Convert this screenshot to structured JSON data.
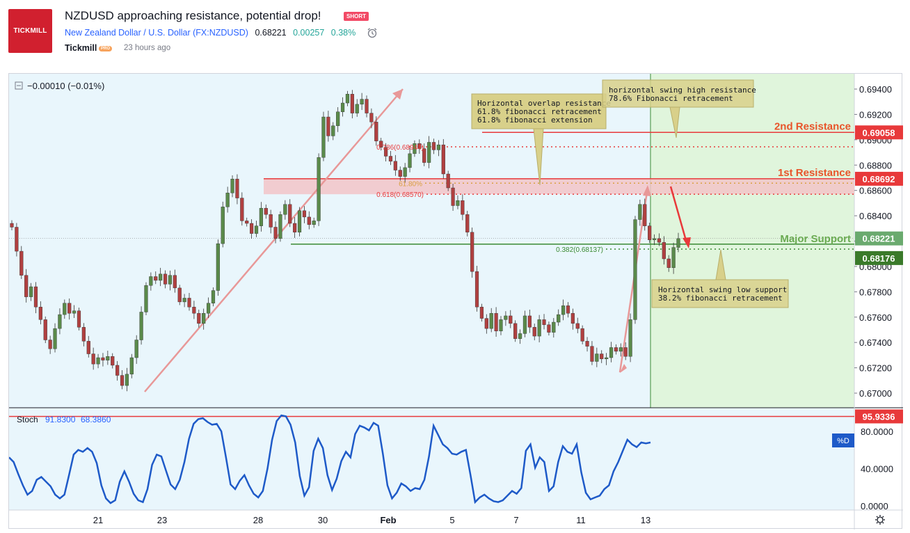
{
  "header": {
    "logo_text": "TICKMILL",
    "title": "NZDUSD approaching resistance, potential drop!",
    "badge": "SHORT",
    "symbol_name": "New Zealand Dollar / U.S. Dollar (FX:NZDUSD)",
    "price": "0.68221",
    "change": "0.00257",
    "change_pct": "0.38%",
    "author": "Tickmill",
    "author_badge": "PRO",
    "time_ago": "23 hours ago"
  },
  "colors": {
    "background_left": "#e9f6fc",
    "background_right": "#e0f5dc",
    "resistance": "#e8393a",
    "support": "#3a8a32",
    "candle_up": "#5a8a4a",
    "candle_down": "#b04040",
    "stoch_line": "#1e5ac8",
    "arrow": "#e89898",
    "annotation_bg": "#d8d08a"
  },
  "chart_data": {
    "type": "candlestick",
    "symbol": "FX:NZDUSD",
    "price_axis_ticks": [
      "0.69400",
      "0.69200",
      "0.69000",
      "0.68800",
      "0.68600",
      "0.68400",
      "0.68200",
      "0.68000",
      "0.67800",
      "0.67600",
      "0.67400",
      "0.67200",
      "0.67000"
    ],
    "price_axis_values": [
      0.694,
      0.692,
      0.69,
      0.688,
      0.686,
      0.684,
      0.682,
      0.68,
      0.678,
      0.676,
      0.674,
      0.672,
      0.67
    ],
    "ylim": [
      0.669,
      0.6955
    ],
    "x_tick_labels": [
      "21",
      "23",
      "28",
      "30",
      "Feb",
      "5",
      "7",
      "11",
      "13"
    ],
    "change_readout": "−0.00010 (−0.01%)",
    "price_tags": [
      {
        "label": "0.69058",
        "value": 0.69058,
        "kind": "resistance"
      },
      {
        "label": "0.68692",
        "value": 0.68692,
        "kind": "resistance"
      },
      {
        "label": "0.68221",
        "value": 0.68221,
        "kind": "current"
      },
      {
        "label": "0.68176",
        "value": 0.68176,
        "kind": "support"
      }
    ],
    "levels": [
      {
        "label": "2nd Resistance",
        "value": 0.69058
      },
      {
        "label": "1st Resistance",
        "value": 0.68692
      },
      {
        "label": "Major Support",
        "value": 0.68176
      }
    ],
    "fib_labels": [
      {
        "label": "0.786(0.68944)",
        "value": 0.68944
      },
      {
        "label": "61.80%",
        "value": 0.68657
      },
      {
        "label": "0.618(0.68570)",
        "value": 0.6857
      },
      {
        "label": "0.382(0.68137)",
        "value": 0.68137
      }
    ],
    "annotations": [
      {
        "lines": [
          "Horizontal overlap resistance",
          "61.8% fibonacci retracement",
          "61.8% fibonacci extension"
        ]
      },
      {
        "lines": [
          "horizontal swing high resistance",
          "78.6% Fibonacci retracement"
        ]
      },
      {
        "lines": [
          "Horizontal swing low support",
          "38.2% fibonacci retracement"
        ]
      }
    ],
    "price_path": [
      0.6831,
      0.6812,
      0.6793,
      0.6776,
      0.6784,
      0.6768,
      0.6758,
      0.6742,
      0.6735,
      0.6751,
      0.6762,
      0.6771,
      0.6763,
      0.6765,
      0.6752,
      0.6741,
      0.6731,
      0.6723,
      0.6728,
      0.6726,
      0.6729,
      0.6722,
      0.6714,
      0.6706,
      0.6715,
      0.6728,
      0.6742,
      0.6764,
      0.6785,
      0.6792,
      0.6789,
      0.6794,
      0.6786,
      0.6793,
      0.6783,
      0.6772,
      0.6775,
      0.6768,
      0.6763,
      0.6755,
      0.6763,
      0.6771,
      0.6781,
      0.6818,
      0.6847,
      0.6858,
      0.6869,
      0.6854,
      0.6836,
      0.6834,
      0.6826,
      0.6832,
      0.6846,
      0.6841,
      0.6831,
      0.6822,
      0.6841,
      0.6849,
      0.6834,
      0.6827,
      0.6844,
      0.6839,
      0.6833,
      0.6836,
      0.6886,
      0.6918,
      0.6903,
      0.6911,
      0.6922,
      0.6929,
      0.6936,
      0.6921,
      0.6928,
      0.6932,
      0.6921,
      0.6914,
      0.6899,
      0.6894,
      0.6887,
      0.6883,
      0.6876,
      0.6871,
      0.6878,
      0.6889,
      0.6897,
      0.6893,
      0.6882,
      0.6898,
      0.6892,
      0.6896,
      0.6873,
      0.6862,
      0.6848,
      0.6852,
      0.6841,
      0.6827,
      0.6796,
      0.6768,
      0.6759,
      0.6751,
      0.6763,
      0.6749,
      0.6758,
      0.6761,
      0.6755,
      0.6743,
      0.6747,
      0.6761,
      0.6752,
      0.6745,
      0.6758,
      0.6754,
      0.6748,
      0.6756,
      0.6762,
      0.6769,
      0.6763,
      0.6755,
      0.6751,
      0.6741,
      0.6737,
      0.6725,
      0.6731,
      0.6727,
      0.6728,
      0.6736,
      0.6733,
      0.6736,
      0.6729,
      0.6758,
      0.6837,
      0.6849,
      0.6832,
      0.6821,
      0.6822,
      0.6819,
      0.6806,
      0.6799,
      0.6815,
      0.6822
    ],
    "stoch": {
      "label": "Stoch",
      "k": "91.8300",
      "d": "68.3860",
      "d_tag": "%D",
      "overbought_tag": "95.9336",
      "axis_ticks": [
        "80.0000",
        "40.0000",
        "0.0000"
      ],
      "values": [
        52,
        47,
        34,
        22,
        12,
        16,
        28,
        31,
        26,
        21,
        12,
        8,
        12,
        33,
        55,
        60,
        58,
        62,
        58,
        46,
        22,
        8,
        3,
        6,
        26,
        37,
        26,
        13,
        6,
        4,
        18,
        44,
        55,
        53,
        38,
        23,
        18,
        28,
        47,
        72,
        88,
        93,
        94,
        90,
        87,
        88,
        80,
        52,
        23,
        18,
        27,
        33,
        22,
        13,
        9,
        16,
        40,
        71,
        91,
        97,
        96,
        87,
        68,
        32,
        11,
        20,
        59,
        72,
        62,
        33,
        17,
        29,
        48,
        58,
        52,
        77,
        86,
        84,
        81,
        89,
        86,
        56,
        22,
        8,
        14,
        24,
        21,
        16,
        19,
        18,
        28,
        53,
        86,
        76,
        66,
        62,
        56,
        55,
        58,
        60,
        33,
        4,
        9,
        12,
        8,
        5,
        4,
        6,
        11,
        16,
        13,
        19,
        59,
        66,
        41,
        52,
        47,
        16,
        21,
        47,
        64,
        58,
        56,
        66,
        36,
        14,
        7,
        9,
        11,
        18,
        22,
        37,
        47,
        59,
        71,
        66,
        63,
        68,
        67,
        68
      ]
    },
    "grid": false,
    "legend": "none"
  }
}
